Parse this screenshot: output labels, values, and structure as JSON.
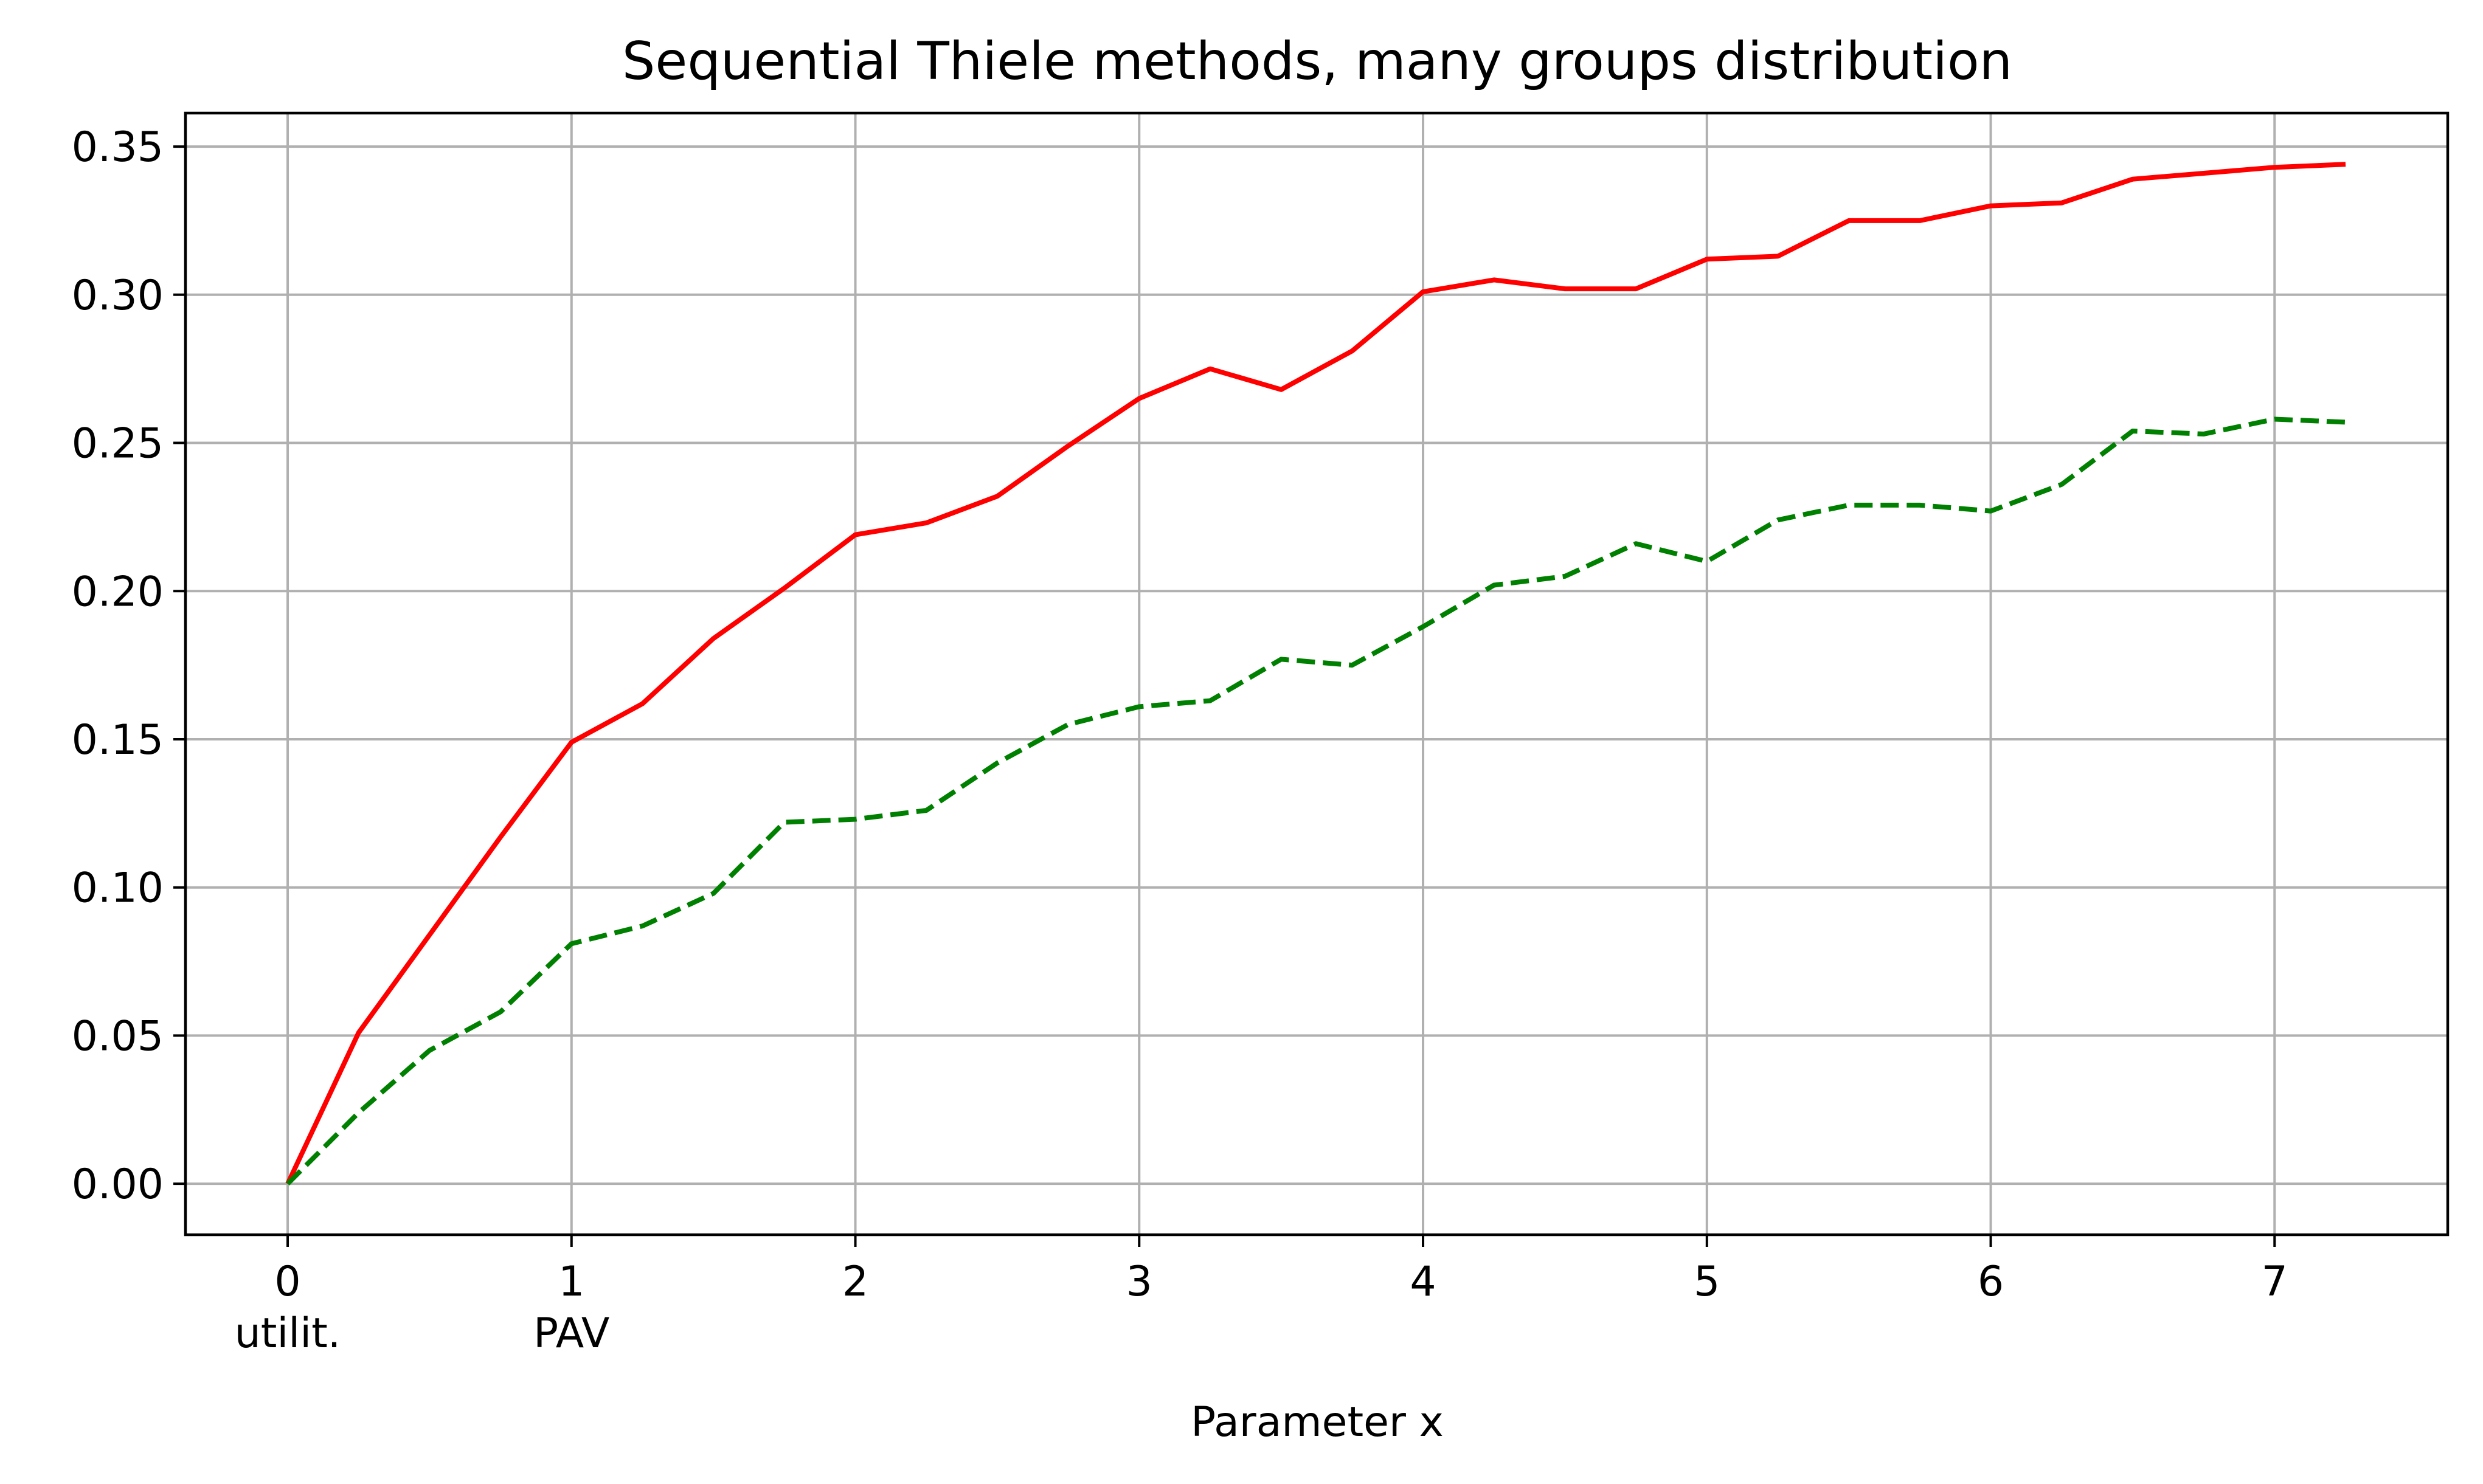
{
  "chart_data": {
    "type": "line",
    "title": "Sequential Thiele methods, many groups distribution",
    "xlabel": "Parameter x",
    "ylabel": "",
    "xlim": [
      -0.36,
      7.61
    ],
    "ylim": [
      -0.0172,
      0.3613
    ],
    "grid": true,
    "legend": "none",
    "x_ticks": [
      0,
      1,
      2,
      3,
      4,
      5,
      6,
      7
    ],
    "x_tick_labels": [
      "0",
      "1",
      "2",
      "3",
      "4",
      "5",
      "6",
      "7"
    ],
    "x_tick_sublabels": [
      {
        "x": 0,
        "text": "utilit."
      },
      {
        "x": 1,
        "text": "PAV"
      }
    ],
    "y_ticks": [
      0.0,
      0.05,
      0.1,
      0.15,
      0.2,
      0.25,
      0.3,
      0.35
    ],
    "y_tick_labels": [
      "0.00",
      "0.05",
      "0.10",
      "0.15",
      "0.20",
      "0.25",
      "0.30",
      "0.35"
    ],
    "x": [
      0,
      0.25,
      0.5,
      0.75,
      1,
      1.25,
      1.5,
      1.75,
      2,
      2.25,
      2.5,
      2.75,
      3,
      3.25,
      3.5,
      3.75,
      4,
      4.25,
      4.5,
      4.75,
      5,
      5.25,
      5.5,
      5.75,
      6,
      6.25,
      6.5,
      6.75,
      7,
      7.25
    ],
    "series": [
      {
        "color": "#ff0000",
        "style": "solid",
        "values": [
          0.0,
          0.051,
          0.084,
          0.117,
          0.149,
          0.162,
          0.184,
          0.201,
          0.219,
          0.223,
          0.232,
          0.249,
          0.265,
          0.275,
          0.268,
          0.281,
          0.301,
          0.305,
          0.302,
          0.302,
          0.312,
          0.313,
          0.325,
          0.325,
          0.33,
          0.331,
          0.339,
          0.341,
          0.343,
          0.344
        ]
      },
      {
        "color": "#008000",
        "style": "dashed",
        "values": [
          0.0,
          0.024,
          0.045,
          0.058,
          0.081,
          0.087,
          0.098,
          0.122,
          0.123,
          0.126,
          0.142,
          0.155,
          0.161,
          0.163,
          0.177,
          0.175,
          0.188,
          0.202,
          0.205,
          0.216,
          0.21,
          0.224,
          0.229,
          0.229,
          0.227,
          0.236,
          0.254,
          0.253,
          0.258,
          0.257
        ]
      }
    ]
  }
}
